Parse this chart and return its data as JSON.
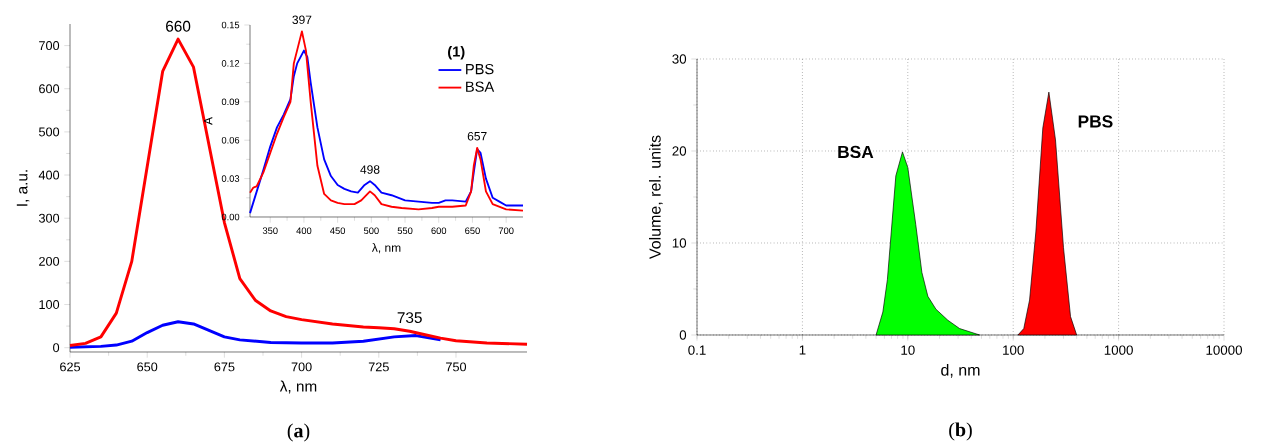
{
  "chart_data": [
    {
      "type": "line",
      "title": "(**a**)",
      "xlabel": "λ, nm",
      "ylabel": "I, a.u.",
      "xlim": [
        625,
        773
      ],
      "ylim": [
        -10,
        750
      ],
      "xticks": [
        625,
        650,
        675,
        700,
        725,
        750
      ],
      "yticks": [
        0,
        100,
        200,
        300,
        400,
        500,
        600,
        700
      ],
      "series": [
        {
          "color": "#0000ff",
          "x": [
            625,
            635,
            640,
            645,
            650,
            655,
            660,
            665,
            670,
            675,
            680,
            690,
            700,
            710,
            720,
            730,
            737,
            745
          ],
          "values": [
            1,
            3,
            6,
            15,
            35,
            52,
            60,
            55,
            40,
            25,
            18,
            12,
            11,
            11,
            15,
            25,
            28,
            18
          ]
        },
        {
          "color": "#ff0000",
          "x": [
            625,
            630,
            635,
            640,
            645,
            650,
            655,
            660,
            665,
            670,
            675,
            680,
            685,
            690,
            695,
            700,
            710,
            720,
            725,
            730,
            735,
            740,
            745,
            750,
            760,
            773
          ],
          "values": [
            5,
            10,
            25,
            80,
            200,
            420,
            640,
            715,
            650,
            470,
            290,
            160,
            110,
            85,
            72,
            65,
            55,
            48,
            46,
            44,
            38,
            30,
            22,
            16,
            11,
            8
          ]
        }
      ],
      "annotations": [
        {
          "text": "660",
          "x": 660,
          "y": 715
        },
        {
          "text": "735",
          "x": 735,
          "y": 40
        }
      ]
    },
    {
      "type": "line",
      "xlabel": "λ, nm",
      "ylabel": "A",
      "legend_title": "(1)",
      "legend": "top right",
      "xlim": [
        320,
        725
      ],
      "ylim": [
        0,
        0.15
      ],
      "xticks": [
        350,
        400,
        450,
        500,
        550,
        600,
        650,
        700
      ],
      "yticks": [
        {
          "value": 0,
          "label": "0.00"
        },
        0.03,
        {
          "value": 0.06,
          "label": "0.06"
        },
        {
          "value": 0.09,
          "label": "0.09"
        },
        0.12,
        0.15
      ],
      "series": [
        {
          "name": "PBS",
          "color": "#0000ff",
          "x": [
            320,
            330,
            340,
            350,
            360,
            370,
            380,
            385,
            390,
            400,
            405,
            410,
            420,
            430,
            440,
            450,
            460,
            470,
            480,
            490,
            498,
            505,
            515,
            530,
            550,
            570,
            590,
            600,
            610,
            620,
            640,
            648,
            652,
            657,
            662,
            670,
            680,
            690,
            700,
            725
          ],
          "values": [
            0.003,
            0.02,
            0.037,
            0.055,
            0.07,
            0.08,
            0.092,
            0.11,
            0.12,
            0.13,
            0.125,
            0.105,
            0.07,
            0.045,
            0.032,
            0.025,
            0.022,
            0.02,
            0.019,
            0.025,
            0.028,
            0.025,
            0.019,
            0.017,
            0.013,
            0.012,
            0.011,
            0.011,
            0.013,
            0.013,
            0.012,
            0.02,
            0.035,
            0.053,
            0.05,
            0.03,
            0.015,
            0.012,
            0.009,
            0.009
          ]
        },
        {
          "name": "BSA",
          "color": "#ff0000",
          "x": [
            320,
            325,
            330,
            340,
            350,
            360,
            370,
            380,
            385,
            397,
            403,
            410,
            420,
            430,
            440,
            450,
            460,
            475,
            485,
            498,
            505,
            515,
            530,
            545,
            570,
            590,
            600,
            620,
            640,
            648,
            652,
            657,
            662,
            670,
            680,
            700,
            725
          ],
          "values": [
            0.019,
            0.023,
            0.024,
            0.035,
            0.05,
            0.065,
            0.078,
            0.09,
            0.12,
            0.145,
            0.13,
            0.09,
            0.04,
            0.018,
            0.013,
            0.011,
            0.01,
            0.01,
            0.013,
            0.02,
            0.017,
            0.01,
            0.008,
            0.007,
            0.006,
            0.007,
            0.008,
            0.008,
            0.009,
            0.02,
            0.04,
            0.054,
            0.045,
            0.02,
            0.01,
            0.006,
            0.005
          ]
        }
      ],
      "annotations": [
        {
          "text": "397",
          "x": 397,
          "y": 0.145
        },
        {
          "text": "498",
          "x": 498,
          "y": 0.028
        },
        {
          "text": "657",
          "x": 657,
          "y": 0.054
        }
      ]
    },
    {
      "type": "area",
      "title": "(**b**)",
      "xlabel": "d, nm",
      "ylabel": "Volume, rel. units",
      "log": "x",
      "grid": true,
      "xlim": [
        0.1,
        10000
      ],
      "ylim": [
        0,
        30
      ],
      "xticks": [
        0.1,
        1,
        10,
        100,
        1000,
        10000
      ],
      "yticks": [
        0,
        {
          "value": 5,
          "label": null
        },
        10,
        {
          "value": 15,
          "label": null
        },
        20,
        {
          "value": 25,
          "label": null
        },
        30
      ],
      "series": [
        {
          "name": "BSA",
          "color": "#00ff00",
          "x": [
            5.0,
            5.8,
            6.4,
            7.7,
            8.9,
            10,
            11.9,
            13.6,
            15.5,
            18.5,
            24,
            31,
            48
          ],
          "values": [
            0,
            2.5,
            6,
            17.3,
            19.9,
            18.2,
            12,
            6.8,
            4.2,
            2.8,
            1.6,
            0.7,
            0
          ]
        },
        {
          "name": "PBS",
          "color": "#ff0000",
          "x": [
            111,
            126,
            143,
            164,
            191,
            218,
            252,
            300,
            350,
            400
          ],
          "values": [
            0,
            0.7,
            3.8,
            11.2,
            22.5,
            26.4,
            21.2,
            9.5,
            2,
            0
          ]
        }
      ]
    }
  ]
}
